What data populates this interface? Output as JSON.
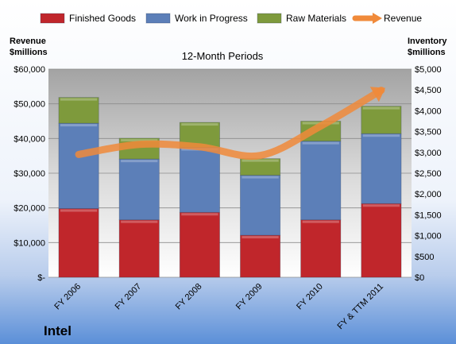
{
  "chart_data": {
    "type": "bar",
    "stacked": true,
    "subtitle": "12-Month Periods",
    "company": "Intel",
    "y_left_label": [
      "Revenue",
      "$millions"
    ],
    "y_right_label": [
      "Inventory",
      "$millions"
    ],
    "categories": [
      "FY 2006",
      "FY 2007",
      "FY 2008",
      "FY 2009",
      "FY 2010",
      "FY & TTM 2011"
    ],
    "series": [
      {
        "name": "Finished Goods",
        "axis": "right",
        "kind": "bar",
        "color": "#c0262b",
        "values": [
          1650,
          1380,
          1560,
          1010,
          1380,
          1770
        ]
      },
      {
        "name": "Work in Progress",
        "axis": "right",
        "kind": "bar",
        "color": "#5c7fb8",
        "values": [
          2050,
          1460,
          1560,
          1440,
          1890,
          1680
        ]
      },
      {
        "name": "Raw Materials",
        "axis": "right",
        "kind": "bar",
        "color": "#7e9a3c",
        "values": [
          620,
          500,
          600,
          400,
          480,
          660
        ]
      },
      {
        "name": "Revenue",
        "axis": "left",
        "kind": "line",
        "color": "#f08a3a",
        "values": [
          35400,
          38300,
          37600,
          35100,
          43600,
          53900
        ]
      }
    ],
    "y_left": {
      "min": 0,
      "max": 60000,
      "ticks": [
        "$-",
        "$10,000",
        "$20,000",
        "$30,000",
        "$40,000",
        "$50,000",
        "$60,000"
      ]
    },
    "y_right": {
      "min": 0,
      "max": 5000,
      "ticks": [
        "$0",
        "$500",
        "$1,000",
        "$1,500",
        "$2,000",
        "$2,500",
        "$3,000",
        "$3,500",
        "$4,000",
        "$4,500",
        "$5,000"
      ]
    },
    "legend_position": "top",
    "grid": true
  }
}
